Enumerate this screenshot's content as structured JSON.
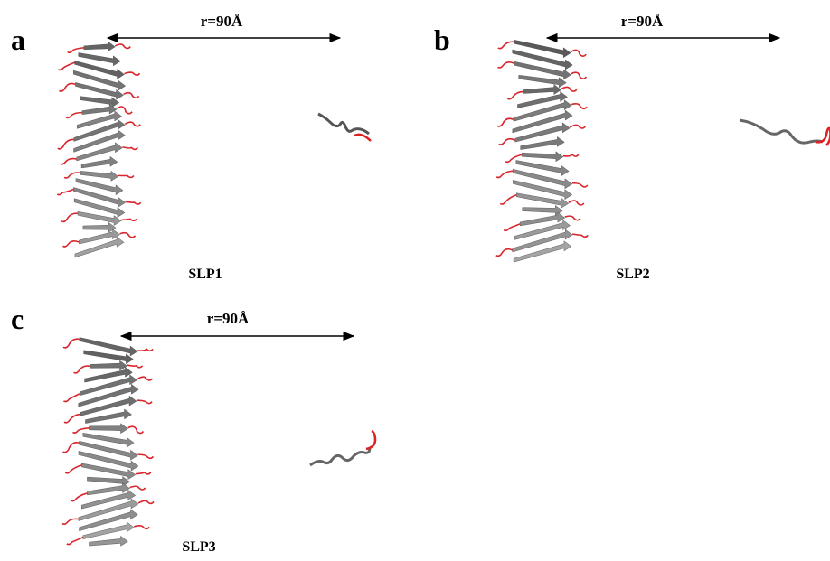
{
  "panels": [
    {
      "label": "a",
      "distance": "r=90Å",
      "name": "SLP1"
    },
    {
      "label": "b",
      "distance": "r=90Å",
      "name": "SLP2"
    },
    {
      "label": "c",
      "distance": "r=90Å",
      "name": "SLP3"
    }
  ]
}
